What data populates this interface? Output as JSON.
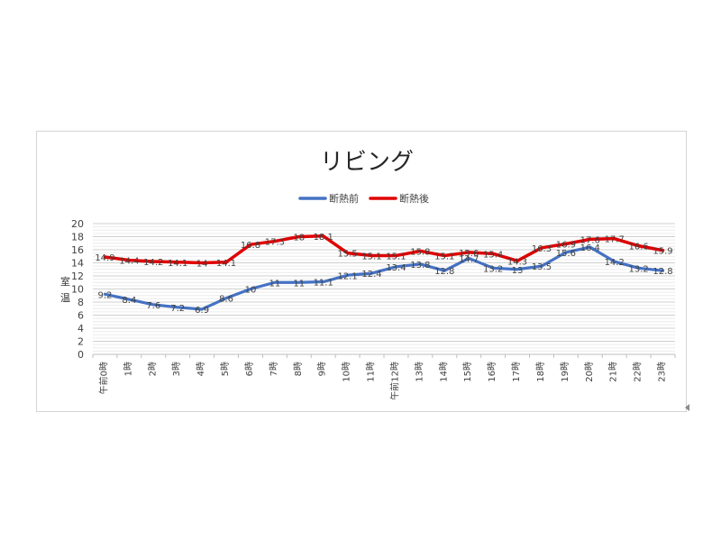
{
  "chart_data": {
    "type": "line",
    "title": "リビング",
    "ylabel": "室温",
    "xlabel": "",
    "ylim": [
      0,
      20
    ],
    "yticks": [
      0,
      2,
      4,
      6,
      8,
      10,
      12,
      14,
      16,
      18,
      20
    ],
    "grid": true,
    "legend_position": "top",
    "categories": [
      "午前0時",
      "1時",
      "2時",
      "3時",
      "4時",
      "5時",
      "6時",
      "7時",
      "8時",
      "9時",
      "10時",
      "11時",
      "午前12時",
      "13時",
      "14時",
      "15時",
      "16時",
      "17時",
      "18時",
      "19時",
      "20時",
      "21時",
      "22時",
      "23時"
    ],
    "series": [
      {
        "name": "断熱前",
        "color": "#4472c4",
        "values": [
          9.2,
          8.4,
          7.6,
          7.2,
          6.9,
          8.6,
          10,
          11,
          11,
          11.1,
          12.1,
          12.4,
          13.4,
          13.8,
          12.8,
          14.7,
          13.2,
          13,
          13.5,
          15.6,
          16.4,
          14.2,
          13.2,
          12.8
        ],
        "labels": [
          "9.2",
          "8.4",
          "7.6",
          "7.2",
          "6.9",
          "8.6",
          "10",
          "11",
          "11",
          "11.1",
          "12.1",
          "12.4",
          "13.4",
          "13.8",
          "12.8",
          "14.7",
          "13.2",
          "13",
          "13.5",
          "15.6",
          "16.4",
          "14.2",
          "13.2",
          "12.8"
        ]
      },
      {
        "name": "断熱後",
        "color": "#e00000",
        "values": [
          14.9,
          14.4,
          14.2,
          14.1,
          14,
          14.1,
          16.8,
          17.3,
          18,
          18.1,
          15.5,
          15.1,
          15.1,
          15.8,
          15.1,
          15.6,
          15.4,
          14.3,
          16.3,
          16.9,
          17.6,
          17.7,
          16.6,
          15.9
        ],
        "labels": [
          "14.9",
          "14.4",
          "14.2",
          "14.1",
          "14",
          "14.1",
          "16.8",
          "17.3",
          "18",
          "18.1",
          "15.5",
          "15.1",
          "15.1",
          "15.8",
          "15.1",
          "15.6",
          "15.4",
          "14.3",
          "16.3",
          "16.9",
          "17.6",
          "17.7",
          "16.6",
          "15.9"
        ]
      }
    ]
  }
}
